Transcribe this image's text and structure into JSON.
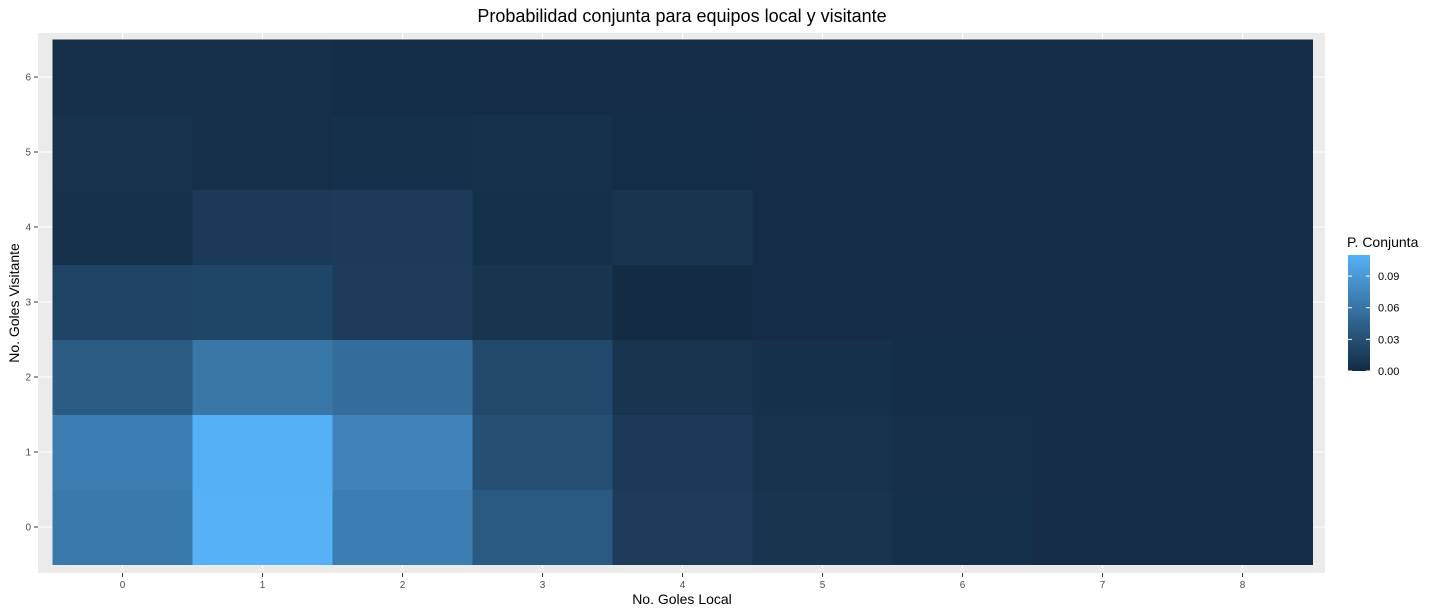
{
  "chart_data": {
    "type": "heatmap",
    "title": "Probabilidad conjunta para equipos local y visitante",
    "xlabel": "No. Goles Local",
    "ylabel": "No. Goles Visitante",
    "x_categories": [
      "0",
      "1",
      "2",
      "3",
      "4",
      "5",
      "6",
      "7",
      "8"
    ],
    "y_categories": [
      "0",
      "1",
      "2",
      "3",
      "4",
      "5",
      "6"
    ],
    "legend_title": "P. Conjunta",
    "legend_ticks": [
      "0.00",
      "0.03",
      "0.06",
      "0.09"
    ],
    "legend_tick_values": [
      0,
      0.03,
      0.06,
      0.09
    ],
    "color_low": "#132B43",
    "color_high": "#56B1F7",
    "value_range": [
      0,
      0.11
    ],
    "panel_background": "#EBEBEB",
    "grid_color": "#FFFFFF",
    "legend_position": "right",
    "values": [
      [
        0.064,
        0.11,
        0.068,
        0.038,
        0.014,
        0.008,
        0.004,
        0.001,
        0.001
      ],
      [
        0.068,
        0.109,
        0.072,
        0.03,
        0.012,
        0.006,
        0.003,
        0.001,
        0.001
      ],
      [
        0.04,
        0.062,
        0.054,
        0.025,
        0.008,
        0.004,
        0.002,
        0.001,
        0.001
      ],
      [
        0.02,
        0.022,
        0.014,
        0.008,
        0.0,
        0.001,
        0.001,
        0.001,
        0.001
      ],
      [
        0.005,
        0.012,
        0.013,
        0.004,
        0.008,
        0.001,
        0.001,
        0.001,
        0.001
      ],
      [
        0.006,
        0.003,
        0.004,
        0.005,
        0.002,
        0.001,
        0.001,
        0.001,
        0.001
      ],
      [
        0.003,
        0.003,
        0.002,
        0.001,
        0.001,
        0.001,
        0.001,
        0.001,
        0.001
      ]
    ]
  }
}
